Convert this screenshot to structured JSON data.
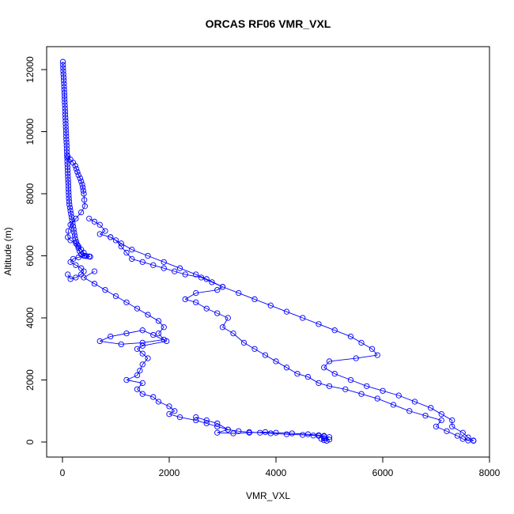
{
  "chart_data": {
    "type": "scatter",
    "title": "ORCAS RF06 VMR_VXL",
    "xlabel": "VMR_VXL",
    "ylabel": "Altitude (m)",
    "xlim": [
      0,
      8000
    ],
    "ylim": [
      0,
      12250
    ],
    "xticks": [
      0,
      2000,
      4000,
      6000,
      8000
    ],
    "yticks": [
      0,
      2000,
      4000,
      6000,
      8000,
      10000,
      12000
    ],
    "xtick_labels": [
      "0",
      "2000",
      "4000",
      "6000",
      "8000"
    ],
    "ytick_labels": [
      "0",
      "2000",
      "4000",
      "6000",
      "8000",
      "10000",
      "12000"
    ],
    "grid": false,
    "legend": "none",
    "color": "#0000ff",
    "marker": "open-circle",
    "series": [
      {
        "profile": "upper-layer",
        "points": [
          [
            8,
            12250
          ],
          [
            10,
            12150
          ],
          [
            12,
            12050
          ],
          [
            14,
            11950
          ],
          [
            18,
            11850
          ],
          [
            22,
            11750
          ],
          [
            25,
            11650
          ],
          [
            28,
            11550
          ],
          [
            30,
            11450
          ],
          [
            32,
            11350
          ],
          [
            35,
            11250
          ],
          [
            38,
            11150
          ],
          [
            40,
            11050
          ],
          [
            42,
            10950
          ],
          [
            45,
            10850
          ],
          [
            48,
            10750
          ],
          [
            50,
            10650
          ],
          [
            52,
            10550
          ],
          [
            55,
            10450
          ],
          [
            58,
            10350
          ],
          [
            60,
            10250
          ],
          [
            62,
            10150
          ],
          [
            65,
            10050
          ],
          [
            68,
            9950
          ],
          [
            70,
            9850
          ],
          [
            72,
            9750
          ],
          [
            75,
            9650
          ],
          [
            78,
            9550
          ],
          [
            80,
            9450
          ],
          [
            82,
            9350
          ],
          [
            85,
            9250
          ],
          [
            88,
            9150
          ],
          [
            90,
            9050
          ],
          [
            92,
            8950
          ],
          [
            95,
            8850
          ],
          [
            98,
            8750
          ],
          [
            100,
            8650
          ],
          [
            102,
            8550
          ],
          [
            105,
            8450
          ],
          [
            108,
            8350
          ],
          [
            110,
            8250
          ],
          [
            112,
            8150
          ],
          [
            115,
            8050
          ],
          [
            118,
            7950
          ],
          [
            120,
            7850
          ],
          [
            125,
            7750
          ],
          [
            130,
            7650
          ],
          [
            140,
            7550
          ],
          [
            150,
            7450
          ],
          [
            160,
            7350
          ],
          [
            170,
            7250
          ],
          [
            180,
            7150
          ],
          [
            190,
            7050
          ],
          [
            200,
            6950
          ],
          [
            210,
            6850
          ],
          [
            220,
            6750
          ],
          [
            230,
            6650
          ],
          [
            240,
            6550
          ],
          [
            260,
            6450
          ],
          [
            280,
            6350
          ],
          [
            300,
            6250
          ],
          [
            320,
            6150
          ],
          [
            350,
            6050
          ],
          [
            400,
            6000
          ],
          [
            450,
            5990
          ],
          [
            500,
            5980
          ],
          [
            520,
            5970
          ]
        ]
      },
      {
        "profile": "left-spike",
        "points": [
          [
            100,
            9200
          ],
          [
            150,
            9100
          ],
          [
            200,
            9000
          ],
          [
            240,
            8900
          ],
          [
            260,
            8800
          ],
          [
            280,
            8700
          ],
          [
            300,
            8600
          ],
          [
            330,
            8500
          ],
          [
            350,
            8400
          ],
          [
            370,
            8300
          ],
          [
            380,
            8200
          ],
          [
            390,
            8100
          ],
          [
            400,
            8000
          ],
          [
            410,
            7800
          ],
          [
            420,
            7600
          ],
          [
            350,
            7400
          ],
          [
            250,
            7200
          ],
          [
            150,
            7000
          ],
          [
            110,
            6800
          ],
          [
            100,
            6600
          ],
          [
            150,
            6500
          ],
          [
            250,
            6400
          ],
          [
            300,
            6300
          ],
          [
            350,
            6200
          ],
          [
            400,
            6100
          ],
          [
            420,
            6000
          ],
          [
            300,
            5950
          ],
          [
            200,
            5900
          ],
          [
            150,
            5800
          ],
          [
            250,
            5700
          ],
          [
            350,
            5600
          ],
          [
            400,
            5500
          ],
          [
            350,
            5400
          ],
          [
            250,
            5300
          ],
          [
            150,
            5250
          ],
          [
            100,
            5400
          ]
        ]
      },
      {
        "profile": "mid-plume",
        "points": [
          [
            500,
            7200
          ],
          [
            600,
            7100
          ],
          [
            700,
            7000
          ],
          [
            800,
            6800
          ],
          [
            700,
            6700
          ],
          [
            900,
            6600
          ],
          [
            1000,
            6500
          ],
          [
            1100,
            6300
          ],
          [
            1200,
            6100
          ],
          [
            1300,
            5900
          ],
          [
            1500,
            5800
          ],
          [
            1700,
            5700
          ],
          [
            1900,
            5600
          ],
          [
            2100,
            5500
          ],
          [
            2300,
            5400
          ],
          [
            2600,
            5300
          ],
          [
            2800,
            5150
          ],
          [
            3000,
            5000
          ],
          [
            2900,
            4900
          ],
          [
            2500,
            4800
          ],
          [
            2300,
            4600
          ],
          [
            2500,
            4500
          ],
          [
            2700,
            4300
          ],
          [
            2900,
            4150
          ],
          [
            3100,
            4000
          ],
          [
            3000,
            3700
          ],
          [
            3200,
            3500
          ],
          [
            3400,
            3200
          ],
          [
            3600,
            3000
          ],
          [
            3800,
            2800
          ],
          [
            4000,
            2600
          ],
          [
            4200,
            2400
          ],
          [
            4400,
            2200
          ],
          [
            4600,
            2100
          ],
          [
            4800,
            1900
          ],
          [
            5000,
            1800
          ],
          [
            5300,
            1700
          ],
          [
            5600,
            1550
          ],
          [
            5900,
            1400
          ],
          [
            6200,
            1200
          ],
          [
            6500,
            1000
          ],
          [
            6800,
            850
          ],
          [
            7100,
            700
          ],
          [
            7000,
            500
          ],
          [
            7200,
            350
          ],
          [
            7400,
            200
          ],
          [
            7500,
            100
          ],
          [
            7600,
            50
          ],
          [
            7700,
            40
          ]
        ]
      },
      {
        "profile": "upper-plume",
        "points": [
          [
            900,
            6600
          ],
          [
            1100,
            6400
          ],
          [
            1300,
            6200
          ],
          [
            1600,
            6000
          ],
          [
            1900,
            5800
          ],
          [
            2200,
            5600
          ],
          [
            2500,
            5400
          ],
          [
            2700,
            5250
          ],
          [
            3000,
            5000
          ],
          [
            3300,
            4800
          ],
          [
            3600,
            4600
          ],
          [
            3900,
            4400
          ],
          [
            4200,
            4200
          ],
          [
            4500,
            4000
          ],
          [
            4800,
            3800
          ],
          [
            5100,
            3600
          ],
          [
            5400,
            3400
          ],
          [
            5600,
            3200
          ],
          [
            5800,
            3000
          ],
          [
            5900,
            2800
          ],
          [
            5500,
            2700
          ],
          [
            5000,
            2600
          ],
          [
            4900,
            2400
          ],
          [
            5100,
            2200
          ],
          [
            5400,
            2000
          ],
          [
            5700,
            1800
          ],
          [
            6000,
            1650
          ],
          [
            6300,
            1500
          ],
          [
            6600,
            1300
          ],
          [
            6900,
            1100
          ],
          [
            7100,
            900
          ],
          [
            7300,
            700
          ],
          [
            7300,
            500
          ],
          [
            7500,
            300
          ],
          [
            7600,
            150
          ],
          [
            7700,
            50
          ]
        ]
      },
      {
        "profile": "lower-left",
        "points": [
          [
            600,
            5500
          ],
          [
            400,
            5300
          ],
          [
            600,
            5100
          ],
          [
            800,
            4900
          ],
          [
            1000,
            4700
          ],
          [
            1200,
            4500
          ],
          [
            1400,
            4300
          ],
          [
            1600,
            4100
          ],
          [
            1800,
            3900
          ],
          [
            1900,
            3700
          ],
          [
            1800,
            3500
          ],
          [
            1900,
            3300
          ],
          [
            1500,
            3200
          ],
          [
            1100,
            3150
          ],
          [
            700,
            3250
          ],
          [
            900,
            3400
          ],
          [
            1200,
            3500
          ],
          [
            1500,
            3600
          ],
          [
            1700,
            3450
          ],
          [
            1950,
            3250
          ],
          [
            1500,
            3100
          ],
          [
            1400,
            3000
          ],
          [
            1500,
            2850
          ],
          [
            1600,
            2700
          ],
          [
            1500,
            2500
          ],
          [
            1450,
            2300
          ],
          [
            1400,
            2150
          ],
          [
            1200,
            2000
          ],
          [
            1500,
            1900
          ],
          [
            1400,
            1700
          ],
          [
            1500,
            1550
          ],
          [
            1700,
            1450
          ],
          [
            1800,
            1300
          ],
          [
            2000,
            1150
          ],
          [
            2100,
            1000
          ],
          [
            2000,
            900
          ],
          [
            2200,
            800
          ],
          [
            2500,
            700
          ],
          [
            2700,
            600
          ],
          [
            2900,
            500
          ],
          [
            3100,
            400
          ],
          [
            3300,
            350
          ],
          [
            3500,
            320
          ],
          [
            3700,
            300
          ],
          [
            3900,
            280
          ],
          [
            4200,
            250
          ],
          [
            4500,
            230
          ],
          [
            4700,
            210
          ],
          [
            4800,
            200
          ],
          [
            4900,
            180
          ],
          [
            5000,
            160
          ],
          [
            4900,
            120
          ],
          [
            4850,
            100
          ],
          [
            4900,
            60
          ],
          [
            5000,
            80
          ],
          [
            4950,
            40
          ]
        ]
      },
      {
        "profile": "near-surface",
        "points": [
          [
            2500,
            800
          ],
          [
            2700,
            700
          ],
          [
            2900,
            600
          ],
          [
            3100,
            400
          ],
          [
            2900,
            300
          ],
          [
            3200,
            280
          ],
          [
            3500,
            300
          ],
          [
            3800,
            320
          ],
          [
            4000,
            300
          ],
          [
            4300,
            280
          ],
          [
            4600,
            250
          ],
          [
            4800,
            220
          ],
          [
            4900,
            200
          ]
        ]
      }
    ]
  }
}
